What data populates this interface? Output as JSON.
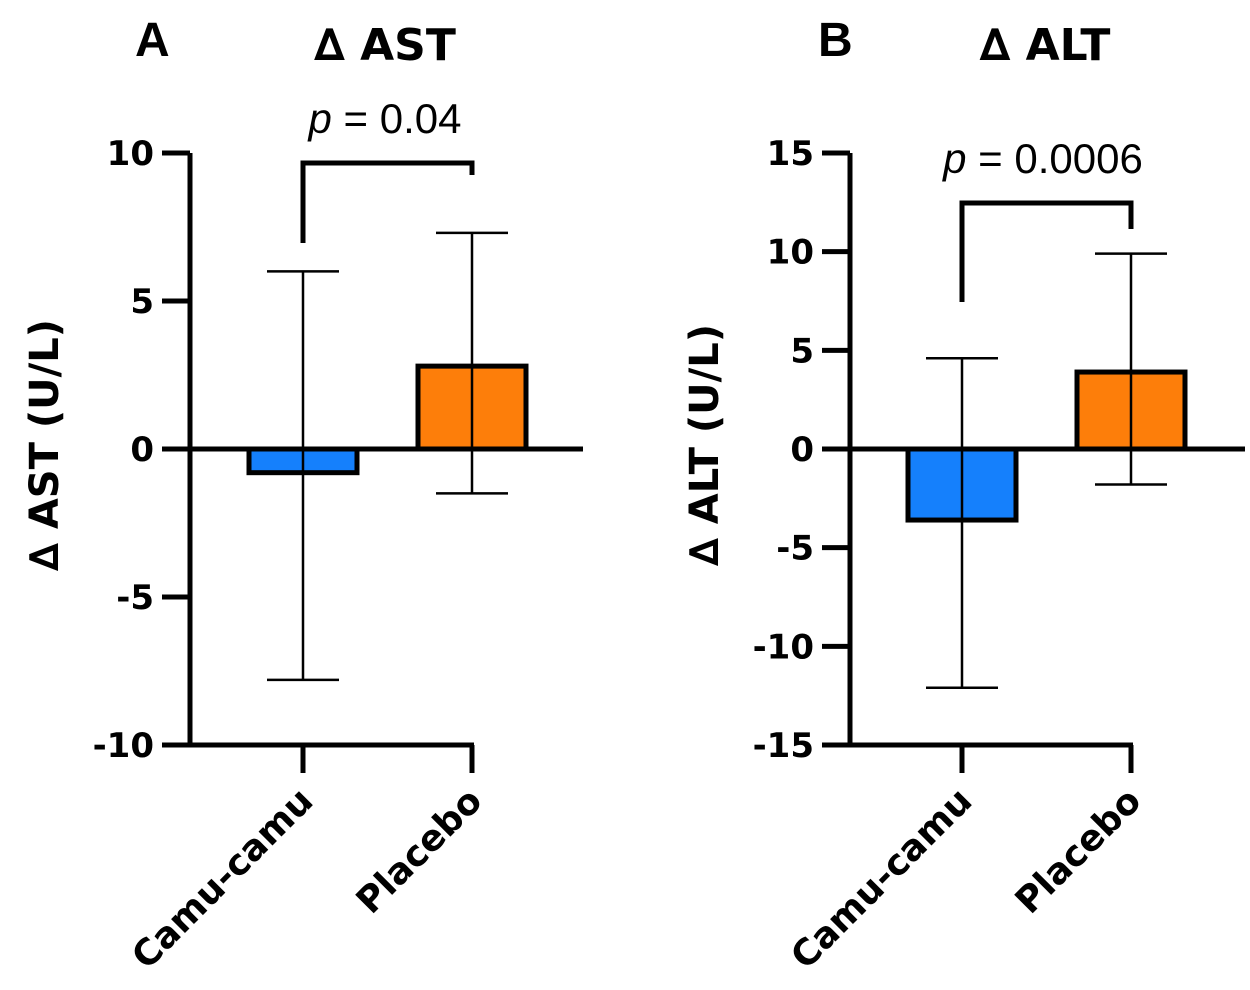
{
  "chart_data": [
    {
      "type": "bar",
      "panel": "A",
      "title": "∆ AST",
      "ylabel": "∆ AST (U/L)",
      "ylim": [
        -10,
        10
      ],
      "yticks": [
        10,
        5,
        0,
        -5,
        -10
      ],
      "categories": [
        "Camu-camu",
        "Placebo"
      ],
      "colors": [
        "#1580fc",
        "#fd7e0a"
      ],
      "values": [
        -0.8,
        2.8
      ],
      "error_low": [
        -7.8,
        -1.5
      ],
      "error_high": [
        6.0,
        7.3
      ],
      "annotation": {
        "p_label": "p",
        "p_text": " = 0.04"
      }
    },
    {
      "type": "bar",
      "panel": "B",
      "title": "∆ ALT",
      "ylabel": "∆ ALT (U/L)",
      "ylim": [
        -15,
        15
      ],
      "yticks": [
        15,
        10,
        5,
        0,
        -5,
        -10,
        -15
      ],
      "categories": [
        "Camu-camu",
        "Placebo"
      ],
      "colors": [
        "#1580fc",
        "#fd7e0a"
      ],
      "values": [
        -3.6,
        3.9
      ],
      "error_low": [
        -12.1,
        -1.8
      ],
      "error_high": [
        4.6,
        9.9
      ],
      "annotation": {
        "p_label": "p",
        "p_text": " = 0.0006"
      }
    }
  ]
}
